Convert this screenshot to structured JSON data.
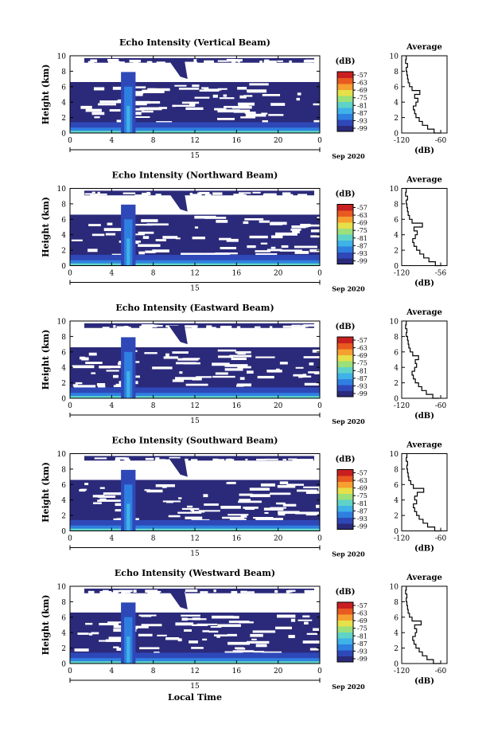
{
  "figure": {
    "xlabel": "Local Time",
    "date_label": "Sep 2020",
    "day_label": "15"
  },
  "colors": {
    "scale": [
      "#2b2a7a",
      "#2f48b8",
      "#2f7fe0",
      "#3fb2e8",
      "#5fd3c8",
      "#9be07a",
      "#e6e04a",
      "#f5a030",
      "#e85a20",
      "#c82020"
    ],
    "no_data": "#ffffff"
  },
  "chart_data": [
    {
      "type": "heatmap",
      "title": "Echo Intensity (Vertical Beam)",
      "ylabel": "Height (km)",
      "xlim": [
        0,
        24
      ],
      "ylim": [
        0,
        10
      ],
      "x_ticks": [
        "0",
        "4",
        "8",
        "12",
        "16",
        "20",
        "0"
      ],
      "y_ticks": [
        "0",
        "2",
        "4",
        "6",
        "8",
        "10"
      ],
      "colorbar": {
        "unit": "(dB)",
        "ticks": [
          "-57",
          "-63",
          "-69",
          "-75",
          "-81",
          "-87",
          "-93",
          "-99"
        ]
      },
      "average_profile": {
        "title": "Average",
        "xlabel": "(dB)",
        "x_ticks": [
          "-120",
          "-60"
        ],
        "xlim": [
          -120,
          -50
        ],
        "y_ticks": [
          "0",
          "2",
          "4",
          "6",
          "8",
          "10"
        ],
        "height": [
          0.0,
          0.5,
          1.0,
          1.5,
          2.0,
          2.5,
          3.0,
          3.5,
          4.0,
          4.5,
          5.0,
          5.5,
          6.0,
          6.5,
          7.0,
          7.5,
          8.0,
          8.5,
          9.0,
          9.5,
          10.0
        ],
        "value": [
          -60,
          -70,
          -80,
          -88,
          -93,
          -98,
          -100,
          -102,
          -98,
          -95,
          -100,
          -92,
          -104,
          -108,
          -110,
          -111,
          -112,
          -113,
          -111,
          -114,
          -113
        ]
      }
    },
    {
      "type": "heatmap",
      "title": "Echo Intensity (Northward Beam)",
      "ylabel": "Height (km)",
      "xlim": [
        0,
        24
      ],
      "ylim": [
        0,
        10
      ],
      "x_ticks": [
        "0",
        "4",
        "8",
        "12",
        "16",
        "20",
        "0"
      ],
      "y_ticks": [
        "0",
        "2",
        "4",
        "6",
        "8",
        "10"
      ],
      "colorbar": {
        "unit": "(dB)",
        "ticks": [
          "-57",
          "-63",
          "-69",
          "-75",
          "-81",
          "-87",
          "-93",
          "-99"
        ]
      },
      "average_profile": {
        "title": "Average",
        "xlabel": "(dB)",
        "x_ticks": [
          "-120",
          "-56"
        ],
        "xlim": [
          -120,
          -50
        ],
        "y_ticks": [
          "0",
          "2",
          "4",
          "6",
          "8",
          "10"
        ],
        "height": [
          0.0,
          0.5,
          1.0,
          1.5,
          2.0,
          2.5,
          3.0,
          3.5,
          4.0,
          4.5,
          5.0,
          5.5,
          6.0,
          6.5,
          7.0,
          7.5,
          8.0,
          8.5,
          9.0,
          9.5,
          10.0
        ],
        "value": [
          -58,
          -68,
          -78,
          -86,
          -92,
          -97,
          -101,
          -103,
          -99,
          -96,
          -101,
          -88,
          -104,
          -108,
          -110,
          -111,
          -112,
          -113,
          -111,
          -114,
          -113
        ]
      }
    },
    {
      "type": "heatmap",
      "title": "Echo Intensity (Eastward Beam)",
      "ylabel": "Height (km)",
      "xlim": [
        0,
        24
      ],
      "ylim": [
        0,
        10
      ],
      "x_ticks": [
        "0",
        "4",
        "8",
        "12",
        "16",
        "20",
        "0"
      ],
      "y_ticks": [
        "0",
        "2",
        "4",
        "6",
        "8",
        "10"
      ],
      "colorbar": {
        "unit": "(dB)",
        "ticks": [
          "-57",
          "-63",
          "-69",
          "-75",
          "-81",
          "-87",
          "-93",
          "-99"
        ]
      },
      "average_profile": {
        "title": "Average",
        "xlabel": "(dB)",
        "x_ticks": [
          "-120",
          "-60"
        ],
        "xlim": [
          -120,
          -50
        ],
        "y_ticks": [
          "0",
          "2",
          "4",
          "6",
          "8",
          "10"
        ],
        "height": [
          0.0,
          0.5,
          1.0,
          1.5,
          2.0,
          2.5,
          3.0,
          3.5,
          4.0,
          4.5,
          5.0,
          5.5,
          6.0,
          6.5,
          7.0,
          7.5,
          8.0,
          8.5,
          9.0,
          9.5,
          10.0
        ],
        "value": [
          -62,
          -72,
          -82,
          -89,
          -94,
          -99,
          -102,
          -104,
          -100,
          -97,
          -99,
          -94,
          -103,
          -107,
          -109,
          -110,
          -111,
          -113,
          -112,
          -114,
          -113
        ]
      }
    },
    {
      "type": "heatmap",
      "title": "Echo Intensity (Southward Beam)",
      "ylabel": "Height (km)",
      "xlim": [
        0,
        24
      ],
      "ylim": [
        0,
        10
      ],
      "x_ticks": [
        "0",
        "4",
        "8",
        "12",
        "16",
        "20",
        "0"
      ],
      "y_ticks": [
        "0",
        "2",
        "4",
        "6",
        "8",
        "10"
      ],
      "colorbar": {
        "unit": "(dB)",
        "ticks": [
          "-57",
          "-63",
          "-69",
          "-75",
          "-81",
          "-87",
          "-93",
          "-99"
        ]
      },
      "average_profile": {
        "title": "Average",
        "xlabel": "(dB)",
        "x_ticks": [
          "-120",
          "-60"
        ],
        "xlim": [
          -120,
          -50
        ],
        "y_ticks": [
          "0",
          "2",
          "4",
          "6",
          "8",
          "10"
        ],
        "height": [
          0.0,
          0.5,
          1.0,
          1.5,
          2.0,
          2.5,
          3.0,
          3.5,
          4.0,
          4.5,
          5.0,
          5.5,
          6.0,
          6.5,
          7.0,
          7.5,
          8.0,
          8.5,
          9.0,
          9.5,
          10.0
        ],
        "value": [
          -59,
          -69,
          -80,
          -87,
          -93,
          -97,
          -100,
          -102,
          -97,
          -100,
          -96,
          -86,
          -102,
          -106,
          -109,
          -110,
          -111,
          -112,
          -111,
          -113,
          -112
        ]
      }
    },
    {
      "type": "heatmap",
      "title": "Echo Intensity (Westward Beam)",
      "ylabel": "Height (km)",
      "xlim": [
        0,
        24
      ],
      "ylim": [
        0,
        10
      ],
      "x_ticks": [
        "0",
        "4",
        "8",
        "12",
        "16",
        "20",
        "0"
      ],
      "y_ticks": [
        "0",
        "2",
        "4",
        "6",
        "8",
        "10"
      ],
      "colorbar": {
        "unit": "(dB)",
        "ticks": [
          "-57",
          "-63",
          "-69",
          "-75",
          "-81",
          "-87",
          "-93",
          "-99"
        ]
      },
      "average_profile": {
        "title": "Average",
        "xlabel": "(dB)",
        "x_ticks": [
          "-120",
          "-60"
        ],
        "xlim": [
          -120,
          -50
        ],
        "y_ticks": [
          "0",
          "2",
          "4",
          "6",
          "8",
          "10"
        ],
        "height": [
          0.0,
          0.5,
          1.0,
          1.5,
          2.0,
          2.5,
          3.0,
          3.5,
          4.0,
          4.5,
          5.0,
          5.5,
          6.0,
          6.5,
          7.0,
          7.5,
          8.0,
          8.5,
          9.0,
          9.5,
          10.0
        ],
        "value": [
          -60,
          -71,
          -81,
          -88,
          -93,
          -98,
          -101,
          -103,
          -99,
          -97,
          -100,
          -90,
          -104,
          -108,
          -110,
          -111,
          -112,
          -113,
          -112,
          -114,
          -113
        ]
      }
    }
  ]
}
